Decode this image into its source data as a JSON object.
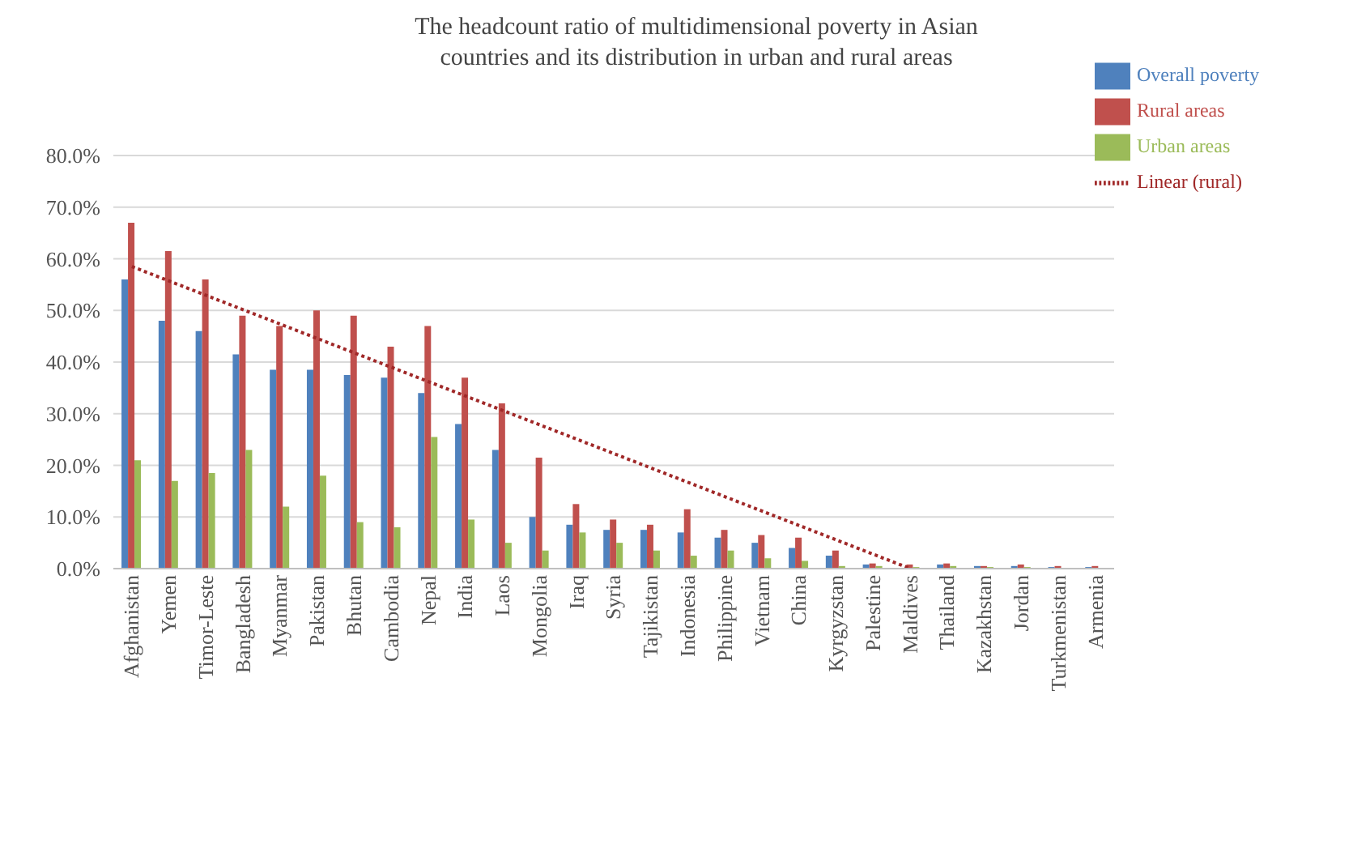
{
  "chart_data": {
    "type": "bar",
    "title": "The headcount ratio of multidimensional poverty in Asian countries and its distribution in urban and rural areas",
    "categories": [
      "Afghanistan",
      "Yemen",
      "Timor-Leste",
      "Bangladesh",
      "Myanmar",
      "Pakistan",
      "Bhutan",
      "Cambodia",
      "Nepal",
      "India",
      "Laos",
      "Mongolia",
      "Iraq",
      "Syria",
      "Tajikistan",
      "Indonesia",
      "Philippine",
      "Vietnam",
      "China",
      "Kyrgyzstan",
      "Palestine",
      "Maldives",
      "Thailand",
      "Kazakhstan",
      "Jordan",
      "Turkmenistan",
      "Armenia"
    ],
    "series": [
      {
        "name": "Overall poverty",
        "color": "#4f81bd",
        "values": [
          56,
          48,
          46,
          41.5,
          38.5,
          38.5,
          37.5,
          37,
          34,
          28,
          23,
          10,
          8.5,
          7.5,
          7.5,
          7,
          6,
          5,
          4,
          2.5,
          0.8,
          null,
          0.8,
          0.5,
          0.5,
          0.3,
          0.3
        ]
      },
      {
        "name": "Rural areas",
        "color": "#c0504d",
        "values": [
          67,
          61.5,
          56,
          49,
          47,
          50,
          49,
          43,
          47,
          37,
          32,
          21.5,
          12.5,
          9.5,
          8.5,
          11.5,
          7.5,
          6.5,
          6,
          3.5,
          1,
          0.8,
          1,
          0.5,
          0.8,
          0.5,
          0.5
        ]
      },
      {
        "name": "Urban areas",
        "color": "#9bbb59",
        "values": [
          21,
          17,
          18.5,
          23,
          12,
          18,
          9,
          8,
          25.5,
          9.5,
          5,
          3.5,
          7,
          5,
          3.5,
          2.5,
          3.5,
          2,
          1.5,
          0.5,
          0.5,
          0.3,
          0.5,
          0.3,
          0.3,
          null,
          null
        ]
      },
      {
        "name": "Linear (rural)",
        "type": "line",
        "color": "#a02828",
        "line_style": "dotted",
        "marker": "none",
        "x": [
          "Afghanistan",
          "Maldives"
        ],
        "values": [
          58.5,
          0
        ]
      }
    ],
    "ylim": [
      0,
      80
    ],
    "yticks": [
      {
        "value": 0,
        "label": "0.0%"
      },
      {
        "value": 10,
        "label": "10.0%"
      },
      {
        "value": 20,
        "label": "20.0%"
      },
      {
        "value": 30,
        "label": "30.0%"
      },
      {
        "value": 40,
        "label": "40.0%"
      },
      {
        "value": 50,
        "label": "50.0%"
      },
      {
        "value": 60,
        "label": "60.0%"
      },
      {
        "value": 70,
        "label": "70.0%"
      },
      {
        "value": 80,
        "label": "80.0%"
      }
    ],
    "grid": "y",
    "legend": "top right"
  }
}
